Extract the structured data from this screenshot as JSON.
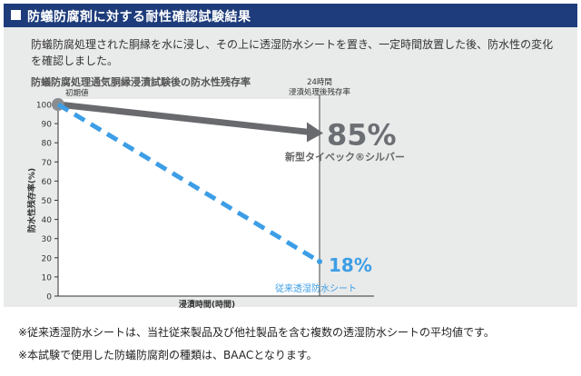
{
  "header": {
    "title": "防蟻防腐剤に対する耐性確認試験結果"
  },
  "intro": "防蟻防腐処理された胴縁を水に浸し、その上に透湿防水シートを置き、一定時間放置した後、防水性の変化を確認しました。",
  "chart_data": {
    "type": "line",
    "title": "防蟻防腐処理通気胴縁浸漬試験後の防水性残存率",
    "xlabel": "浸漬時間(時間)",
    "ylabel": "防水性残存率(%)",
    "ylim": [
      0,
      100
    ],
    "yticks": [
      "0",
      "10",
      "20",
      "30",
      "40",
      "50",
      "60",
      "70",
      "80",
      "90",
      "100"
    ],
    "x_start_label": "初期値",
    "x_end_label_line1": "24時間",
    "x_end_label_line2": "浸漬処理後残存率",
    "x": [
      0,
      24
    ],
    "series": [
      {
        "name": "新型タイベック®シルバー",
        "values": [
          100,
          85
        ],
        "end_label": "85%",
        "color": "#686a6e",
        "style": "solid"
      },
      {
        "name": "従来透湿防水シート",
        "values": [
          100,
          18
        ],
        "end_label": "18%",
        "color": "#3d9ee6",
        "style": "dashed"
      }
    ]
  },
  "notes": [
    "※従来透湿防水シートは、当社従来製品及び他社製品を含む複数の透湿防水シートの平均値です。",
    "※本試験で使用した防蟻防腐剤の種類は、BAACとなります。"
  ]
}
